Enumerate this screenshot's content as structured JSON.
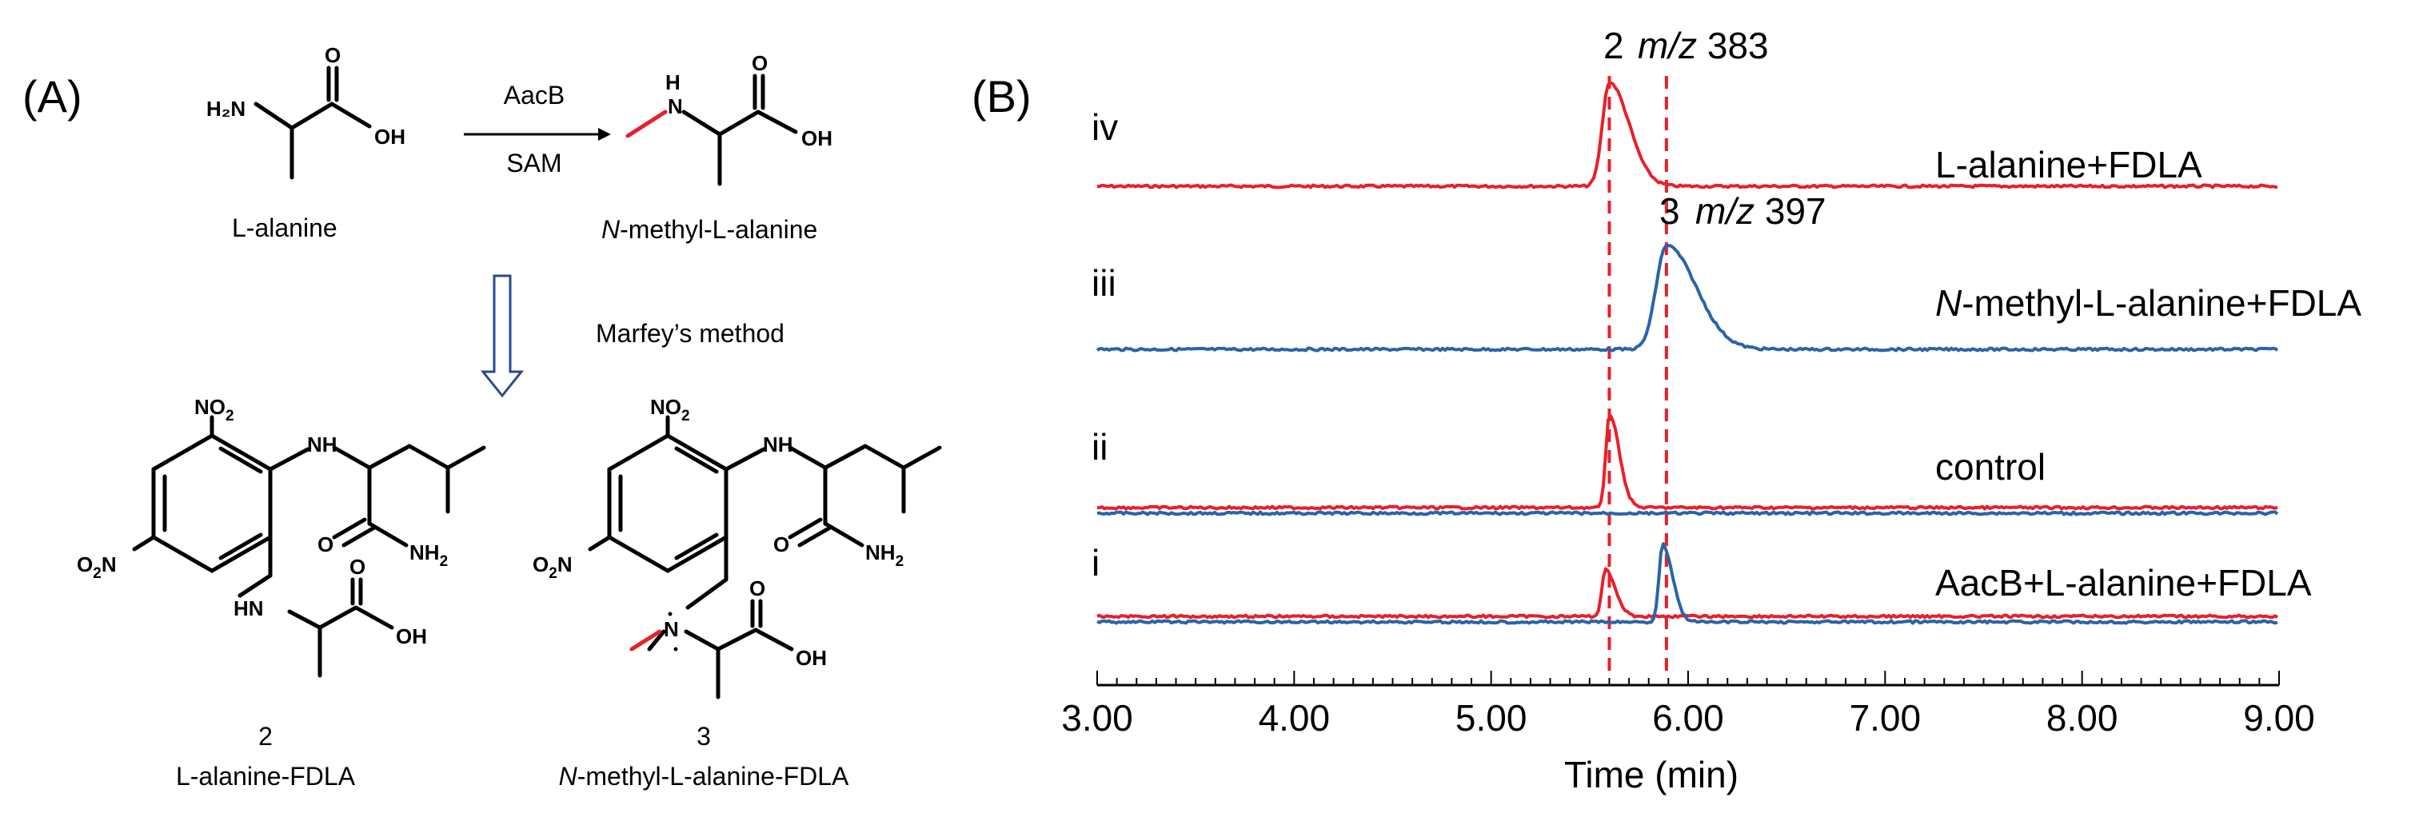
{
  "panel_a": {
    "label": "(A)",
    "reactant": "L-alanine",
    "product_prefix": "N",
    "product_rest": "-methyl-L-alanine",
    "enzyme": "AacB",
    "cofactor": "SAM",
    "method": "Marfey’s method",
    "deriv_left_number": "2",
    "deriv_left_name": "L-alanine-FDLA",
    "deriv_right_number": "3",
    "deriv_right_prefix": "N",
    "deriv_right_rest": "-methyl-L-alanine-FDLA",
    "atoms": {
      "h2n": "H₂N",
      "oh": "OH",
      "o": "O",
      "nh": "H",
      "n": "N",
      "no2": "NO",
      "o2n": "O",
      "nh2": "NH",
      "two": "2"
    }
  },
  "panel_b": {
    "label": "(B)"
  },
  "chart_data": {
    "type": "line",
    "xlabel": "Time (min)",
    "xlim": [
      3.0,
      9.0
    ],
    "x_ticks": [
      "3.00",
      "4.00",
      "5.00",
      "6.00",
      "7.00",
      "8.00",
      "9.00"
    ],
    "reference_lines": [
      5.6,
      5.89
    ],
    "traces": [
      {
        "id": "iv",
        "label": "iv",
        "name": "L-alanine+FDLA",
        "series": [
          {
            "color": "#e8202a",
            "peaks": [
              {
                "rt": 5.6,
                "height": 1.0,
                "width": 0.1
              }
            ]
          }
        ]
      },
      {
        "id": "iii",
        "label": "iii",
        "name_prefix": "N",
        "name": "-methyl-L-alanine+FDLA",
        "series": [
          {
            "color": "#2a64a8",
            "peaks": [
              {
                "rt": 5.89,
                "height": 1.0,
                "width": 0.15
              }
            ]
          }
        ]
      },
      {
        "id": "ii",
        "label": "ii",
        "name": "control",
        "series": [
          {
            "color": "#e8202a",
            "peaks": [
              {
                "rt": 5.6,
                "height": 0.9,
                "width": 0.05
              }
            ]
          },
          {
            "color": "#2a64a8",
            "peaks": []
          }
        ]
      },
      {
        "id": "i",
        "label": "i",
        "name": "AacB+L-alanine+FDLA",
        "series": [
          {
            "color": "#e8202a",
            "peaks": [
              {
                "rt": 5.58,
                "height": 0.45,
                "width": 0.05
              }
            ]
          },
          {
            "color": "#2a64a8",
            "peaks": [
              {
                "rt": 5.87,
                "height": 0.75,
                "width": 0.05
              }
            ]
          }
        ]
      }
    ],
    "annotations": [
      {
        "trace": "iv",
        "number": "2",
        "mz_label": "m/z",
        "mz_value": "383"
      },
      {
        "trace": "iii",
        "number": "3",
        "mz_label": "m/z",
        "mz_value": "397"
      }
    ]
  }
}
